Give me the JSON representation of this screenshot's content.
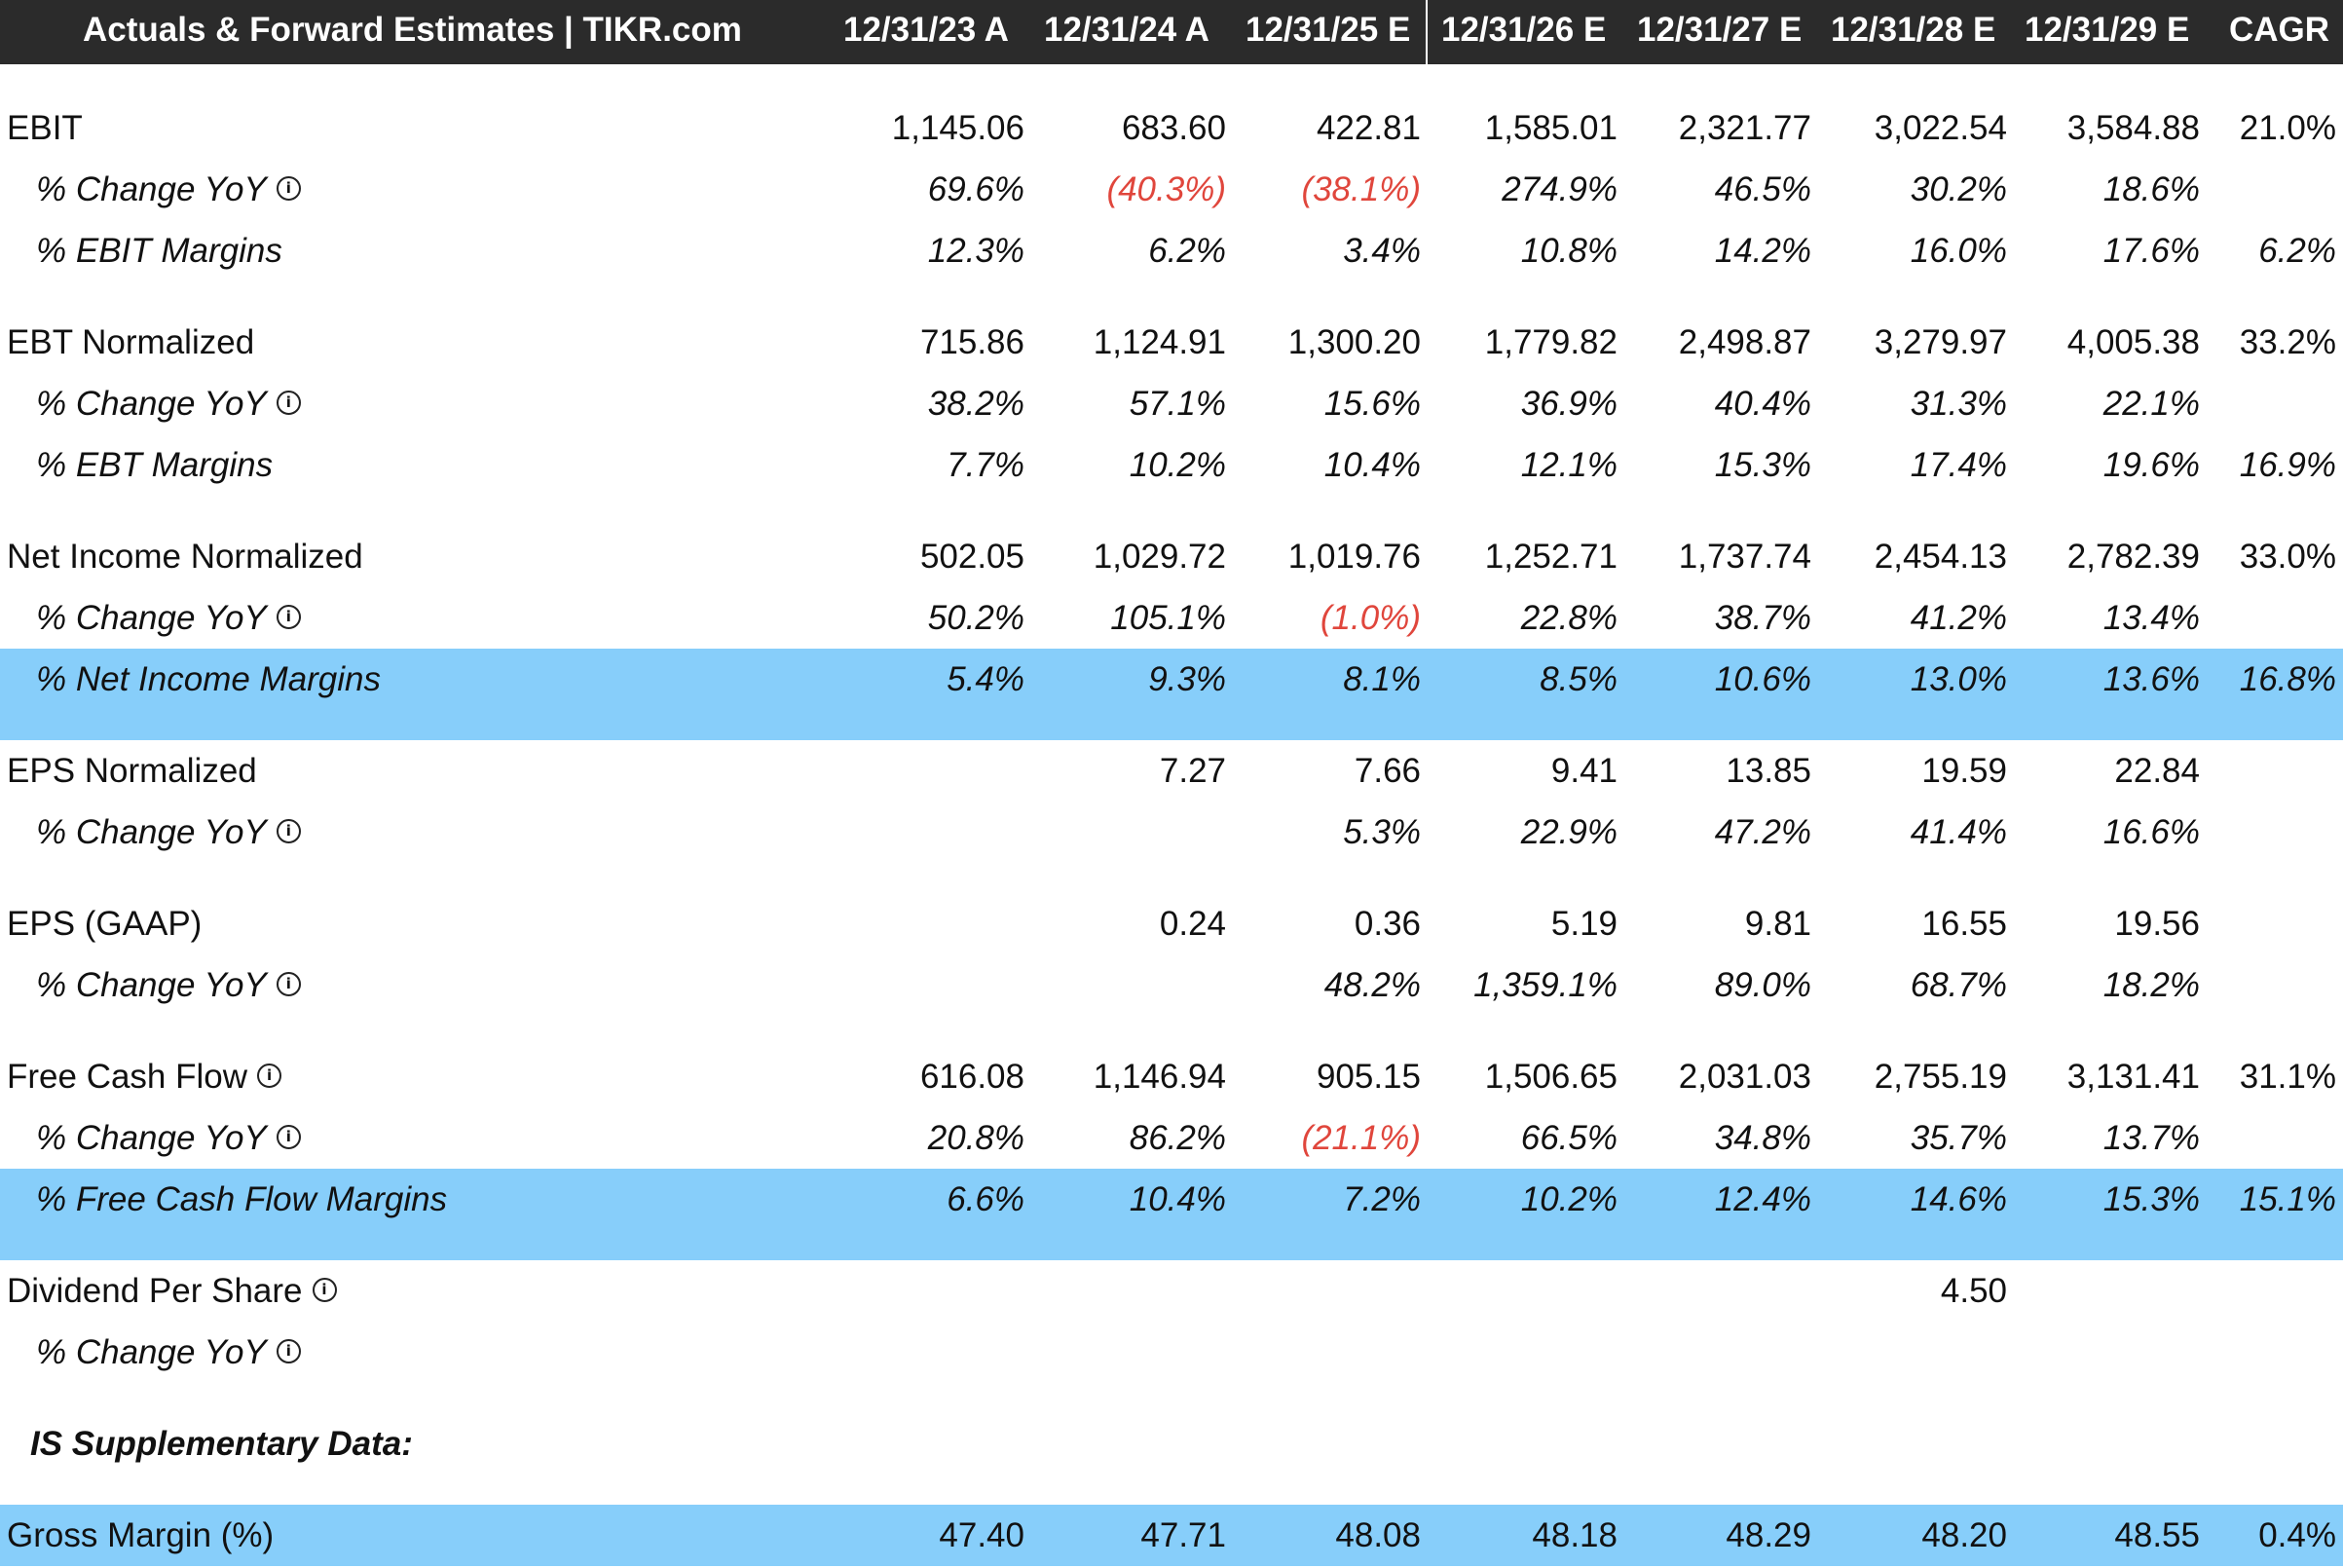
{
  "header": {
    "title": "Actuals & Forward Estimates | TIKR.com",
    "columns": [
      "12/31/23 A",
      "12/31/24 A",
      "12/31/25 E",
      "12/31/26 E",
      "12/31/27 E",
      "12/31/28 E",
      "12/31/29 E",
      "CAGR"
    ]
  },
  "icons": {
    "info": "info-icon"
  },
  "colors": {
    "header_bg": "#2b2b2b",
    "highlight": "#87cefa",
    "negative": "#e0463c"
  },
  "rows": [
    {
      "label": "EBIT",
      "style": "main",
      "info": false,
      "values": [
        "1,145.06",
        "683.60",
        "422.81",
        "1,585.01",
        "2,321.77",
        "3,022.54",
        "3,584.88",
        "21.0%"
      ]
    },
    {
      "label": "% Change YoY",
      "style": "sub",
      "info": true,
      "values": [
        "69.6%",
        "(40.3%)",
        "(38.1%)",
        "274.9%",
        "46.5%",
        "30.2%",
        "18.6%",
        ""
      ]
    },
    {
      "label": "% EBIT Margins",
      "style": "sub",
      "info": false,
      "values": [
        "12.3%",
        "6.2%",
        "3.4%",
        "10.8%",
        "14.2%",
        "16.0%",
        "17.6%",
        "6.2%"
      ]
    },
    {
      "label": "EBT Normalized",
      "style": "main",
      "info": false,
      "values": [
        "715.86",
        "1,124.91",
        "1,300.20",
        "1,779.82",
        "2,498.87",
        "3,279.97",
        "4,005.38",
        "33.2%"
      ]
    },
    {
      "label": "% Change YoY",
      "style": "sub",
      "info": true,
      "values": [
        "38.2%",
        "57.1%",
        "15.6%",
        "36.9%",
        "40.4%",
        "31.3%",
        "22.1%",
        ""
      ]
    },
    {
      "label": "% EBT Margins",
      "style": "sub",
      "info": false,
      "values": [
        "7.7%",
        "10.2%",
        "10.4%",
        "12.1%",
        "15.3%",
        "17.4%",
        "19.6%",
        "16.9%"
      ]
    },
    {
      "label": "Net Income Normalized",
      "style": "main",
      "info": false,
      "values": [
        "502.05",
        "1,029.72",
        "1,019.76",
        "1,252.71",
        "1,737.74",
        "2,454.13",
        "2,782.39",
        "33.0%"
      ]
    },
    {
      "label": "% Change YoY",
      "style": "sub",
      "info": true,
      "values": [
        "50.2%",
        "105.1%",
        "(1.0%)",
        "22.8%",
        "38.7%",
        "41.2%",
        "13.4%",
        ""
      ]
    },
    {
      "label": "% Net Income Margins",
      "style": "sub",
      "highlight": true,
      "info": false,
      "values": [
        "5.4%",
        "9.3%",
        "8.1%",
        "8.5%",
        "10.6%",
        "13.0%",
        "13.6%",
        "16.8%"
      ]
    },
    {
      "label": "EPS Normalized",
      "style": "main",
      "info": false,
      "values": [
        "",
        "7.27",
        "7.66",
        "9.41",
        "13.85",
        "19.59",
        "22.84",
        ""
      ]
    },
    {
      "label": "% Change YoY",
      "style": "sub",
      "info": true,
      "values": [
        "",
        "",
        "5.3%",
        "22.9%",
        "47.2%",
        "41.4%",
        "16.6%",
        ""
      ]
    },
    {
      "label": "EPS (GAAP)",
      "style": "main",
      "info": false,
      "values": [
        "",
        "0.24",
        "0.36",
        "5.19",
        "9.81",
        "16.55",
        "19.56",
        ""
      ]
    },
    {
      "label": "% Change YoY",
      "style": "sub",
      "info": true,
      "values": [
        "",
        "",
        "48.2%",
        "1,359.1%",
        "89.0%",
        "68.7%",
        "18.2%",
        ""
      ]
    },
    {
      "label": "Free Cash Flow",
      "style": "main",
      "info": true,
      "values": [
        "616.08",
        "1,146.94",
        "905.15",
        "1,506.65",
        "2,031.03",
        "2,755.19",
        "3,131.41",
        "31.1%"
      ]
    },
    {
      "label": "% Change YoY",
      "style": "sub",
      "info": true,
      "values": [
        "20.8%",
        "86.2%",
        "(21.1%)",
        "66.5%",
        "34.8%",
        "35.7%",
        "13.7%",
        ""
      ]
    },
    {
      "label": "% Free Cash Flow Margins",
      "style": "sub",
      "highlight": true,
      "info": false,
      "values": [
        "6.6%",
        "10.4%",
        "7.2%",
        "10.2%",
        "12.4%",
        "14.6%",
        "15.3%",
        "15.1%"
      ]
    },
    {
      "label": "Dividend Per Share",
      "style": "main",
      "info": true,
      "values": [
        "",
        "",
        "",
        "",
        "",
        "4.50",
        "",
        ""
      ]
    },
    {
      "label": "% Change YoY",
      "style": "sub",
      "info": true,
      "values": [
        "",
        "",
        "",
        "",
        "",
        "",
        "",
        ""
      ]
    },
    {
      "label": "IS Supplementary Data:",
      "style": "section",
      "info": false,
      "values": [
        "",
        "",
        "",
        "",
        "",
        "",
        "",
        ""
      ]
    },
    {
      "label": "Gross Margin (%)",
      "style": "main",
      "highlight": true,
      "info": false,
      "values": [
        "47.40",
        "47.71",
        "48.08",
        "48.18",
        "48.29",
        "48.20",
        "48.55",
        "0.4%"
      ]
    }
  ]
}
